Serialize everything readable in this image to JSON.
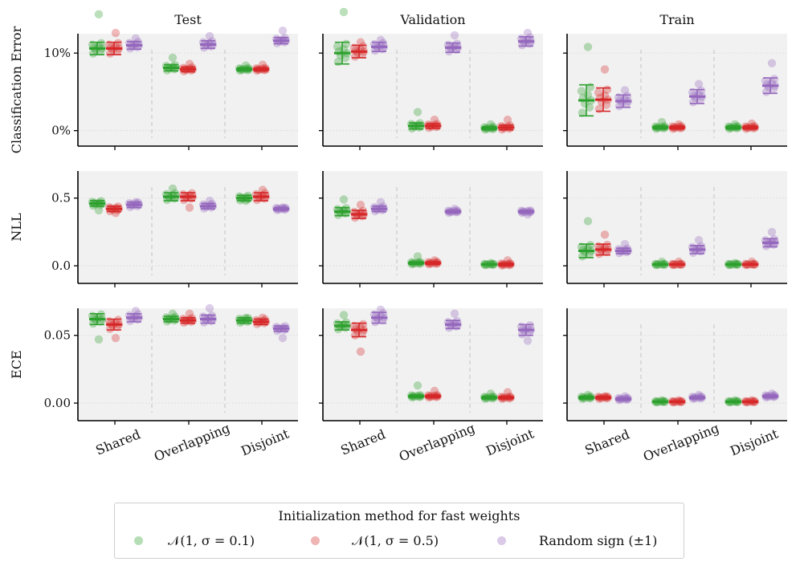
{
  "columns": [
    "Test",
    "Validation",
    "Train"
  ],
  "legend": {
    "title": "Initialization method for fast weights",
    "entries": [
      {
        "label": "𝒩(1, σ = 0.1)",
        "color": "#2ca02c"
      },
      {
        "label": "𝒩(1, σ = 0.5)",
        "color": "#d62728"
      },
      {
        "label": "Random sign (±1)",
        "color": "#9467bd"
      }
    ]
  },
  "chart_data": {
    "type": "scatter",
    "title": "",
    "categories": [
      "Shared",
      "Overlapping",
      "Disjoint"
    ],
    "series_names": [
      "𝒩(1, σ = 0.1)",
      "𝒩(1, σ = 0.5)",
      "Random sign (±1)"
    ],
    "rows": [
      {
        "ylabel": "Classification Error",
        "ylim": [
          -2,
          12.5
        ],
        "ticks": [
          0,
          10
        ],
        "tick_labels": [
          "0%",
          "10%"
        ],
        "panels": {
          "Test": {
            "means": [
              [
                10.6,
                10.6,
                11.0
              ],
              [
                8.1,
                7.9,
                11.1
              ],
              [
                7.9,
                7.9,
                11.6
              ]
            ],
            "spread": [
              [
                0.8,
                0.8,
                0.5
              ],
              [
                0.4,
                0.3,
                0.5
              ],
              [
                0.2,
                0.2,
                0.4
              ]
            ],
            "outliers": [
              [
                15.0,
                12.6,
                11.9
              ],
              [
                9.4,
                8.6,
                12.2
              ],
              [
                8.4,
                8.5,
                12.9
              ]
            ]
          },
          "Validation": {
            "means": [
              [
                10.0,
                10.2,
                10.8
              ],
              [
                0.6,
                0.6,
                10.7
              ],
              [
                0.3,
                0.4,
                11.5
              ]
            ],
            "spread": [
              [
                1.4,
                0.8,
                0.6
              ],
              [
                0.4,
                0.3,
                0.6
              ],
              [
                0.2,
                0.3,
                0.6
              ]
            ],
            "outliers": [
              [
                15.3,
                11.4,
                11.7
              ],
              [
                2.4,
                1.4,
                12.3
              ],
              [
                0.8,
                1.4,
                12.6
              ]
            ]
          },
          "Train": {
            "means": [
              [
                3.9,
                4.0,
                3.8
              ],
              [
                0.4,
                0.4,
                4.4
              ],
              [
                0.4,
                0.4,
                5.8
              ]
            ],
            "spread": [
              [
                2.0,
                1.5,
                0.8
              ],
              [
                0.2,
                0.2,
                0.9
              ],
              [
                0.2,
                0.2,
                1.0
              ]
            ],
            "outliers": [
              [
                10.8,
                7.9,
                5.2
              ],
              [
                1.1,
                0.8,
                6.0
              ],
              [
                0.8,
                0.9,
                8.7
              ]
            ]
          }
        }
      },
      {
        "ylabel": "NLL",
        "ylim": [
          -0.13,
          0.7
        ],
        "ticks": [
          0.0,
          0.5
        ],
        "tick_labels": [
          "0.0",
          "0.5"
        ],
        "panels": {
          "Test": {
            "means": [
              [
                0.46,
                0.42,
                0.45
              ],
              [
                0.51,
                0.51,
                0.44
              ],
              [
                0.5,
                0.51,
                0.42
              ]
            ],
            "spread": [
              [
                0.02,
                0.02,
                0.02
              ],
              [
                0.03,
                0.03,
                0.02
              ],
              [
                0.02,
                0.03,
                0.01
              ]
            ],
            "outliers": [
              [
                0.41,
                0.39,
                0.47
              ],
              [
                0.57,
                0.43,
                0.48
              ],
              [
                0.48,
                0.56,
                0.43
              ]
            ]
          },
          "Validation": {
            "means": [
              [
                0.4,
                0.38,
                0.42
              ],
              [
                0.02,
                0.02,
                0.4
              ],
              [
                0.01,
                0.01,
                0.4
              ]
            ],
            "spread": [
              [
                0.03,
                0.03,
                0.02
              ],
              [
                0.01,
                0.01,
                0.01
              ],
              [
                0.005,
                0.01,
                0.01
              ]
            ],
            "outliers": [
              [
                0.49,
                0.45,
                0.47
              ],
              [
                0.07,
                0.04,
                0.42
              ],
              [
                0.02,
                0.04,
                0.38
              ]
            ]
          },
          "Train": {
            "means": [
              [
                0.11,
                0.12,
                0.11
              ],
              [
                0.01,
                0.01,
                0.12
              ],
              [
                0.01,
                0.01,
                0.17
              ]
            ],
            "spread": [
              [
                0.05,
                0.04,
                0.02
              ],
              [
                0.005,
                0.005,
                0.03
              ],
              [
                0.005,
                0.005,
                0.03
              ]
            ],
            "outliers": [
              [
                0.33,
                0.23,
                0.16
              ],
              [
                0.03,
                0.03,
                0.19
              ],
              [
                0.02,
                0.03,
                0.25
              ]
            ]
          }
        }
      },
      {
        "ylabel": "ECE",
        "ylim": [
          -0.013,
          0.07
        ],
        "ticks": [
          0.0,
          0.05
        ],
        "tick_labels": [
          "0.00",
          "0.05"
        ],
        "panels": {
          "Test": {
            "means": [
              [
                0.062,
                0.058,
                0.063
              ],
              [
                0.062,
                0.061,
                0.062
              ],
              [
                0.061,
                0.06,
                0.055
              ]
            ],
            "spread": [
              [
                0.004,
                0.004,
                0.003
              ],
              [
                0.002,
                0.002,
                0.003
              ],
              [
                0.002,
                0.002,
                0.002
              ]
            ],
            "outliers": [
              [
                0.047,
                0.048,
                0.068
              ],
              [
                0.066,
                0.066,
                0.07
              ],
              [
                0.063,
                0.063,
                0.048
              ]
            ]
          },
          "Validation": {
            "means": [
              [
                0.057,
                0.054,
                0.063
              ],
              [
                0.005,
                0.005,
                0.058
              ],
              [
                0.004,
                0.004,
                0.054
              ]
            ],
            "spread": [
              [
                0.003,
                0.005,
                0.004
              ],
              [
                0.001,
                0.001,
                0.003
              ],
              [
                0.001,
                0.001,
                0.004
              ]
            ],
            "outliers": [
              [
                0.065,
                0.038,
                0.069
              ],
              [
                0.013,
                0.009,
                0.066
              ],
              [
                0.007,
                0.008,
                0.046
              ]
            ]
          },
          "Train": {
            "means": [
              [
                0.004,
                0.004,
                0.003
              ],
              [
                0.001,
                0.001,
                0.004
              ],
              [
                0.001,
                0.001,
                0.005
              ]
            ],
            "spread": [
              [
                0.001,
                0.001,
                0.001
              ],
              [
                0.0005,
                0.0005,
                0.001
              ],
              [
                0.0005,
                0.0005,
                0.001
              ]
            ],
            "outliers": [
              [
                0.006,
                0.005,
                0.005
              ],
              [
                0.002,
                0.002,
                0.006
              ],
              [
                0.002,
                0.002,
                0.007
              ]
            ]
          }
        }
      }
    ]
  }
}
